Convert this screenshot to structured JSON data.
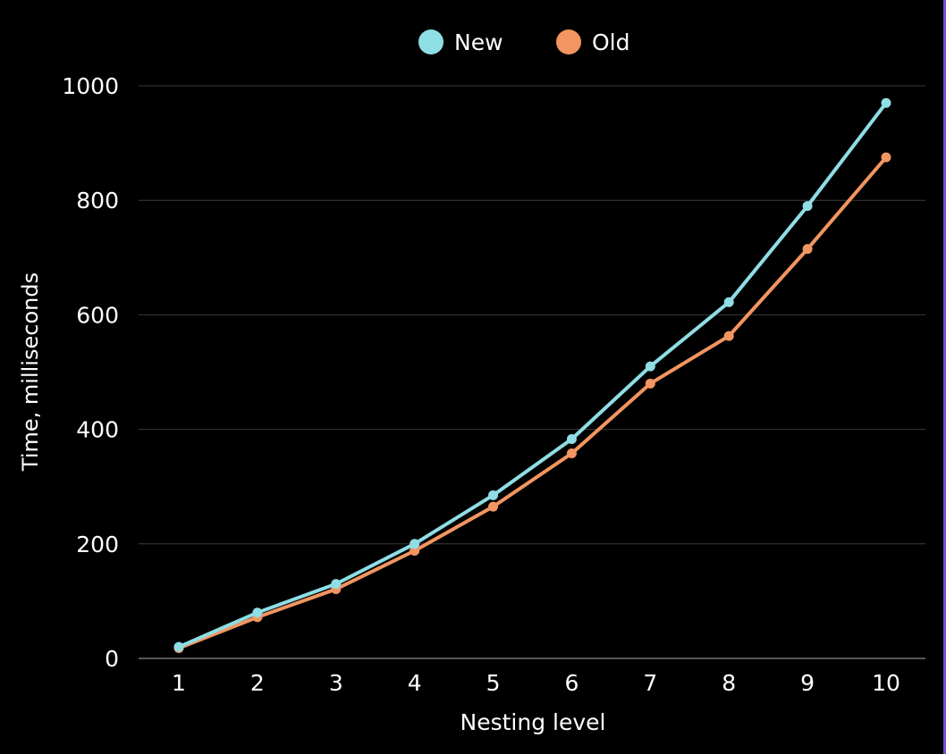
{
  "chart_data": {
    "type": "line",
    "title": "",
    "xlabel": "Nesting level",
    "ylabel": "Time, milliseconds",
    "x": [
      1,
      2,
      3,
      4,
      5,
      6,
      7,
      8,
      9,
      10
    ],
    "x_tick_labels": [
      "1",
      "2",
      "3",
      "4",
      "5",
      "6",
      "7",
      "8",
      "9",
      "10"
    ],
    "ylim": [
      0,
      1000
    ],
    "y_ticks": [
      0,
      200,
      400,
      600,
      800,
      1000
    ],
    "y_tick_labels": [
      "0",
      "200",
      "400",
      "600",
      "800",
      "1000"
    ],
    "grid": "horizontal",
    "legend_position": "top-center",
    "series": [
      {
        "name": "New",
        "color": "#8fdde5",
        "values": [
          20,
          80,
          130,
          200,
          285,
          383,
          510,
          622,
          790,
          970
        ]
      },
      {
        "name": "Old",
        "color": "#f29560",
        "values": [
          18,
          72,
          121,
          188,
          265,
          358,
          480,
          563,
          715,
          875
        ]
      }
    ]
  },
  "theme": {
    "background": "#000000",
    "text_color": "#ffffff",
    "grid_color": "#3a3a3a",
    "axis_color": "#8a8a8a",
    "edge_accent": "#7b4fd1"
  }
}
